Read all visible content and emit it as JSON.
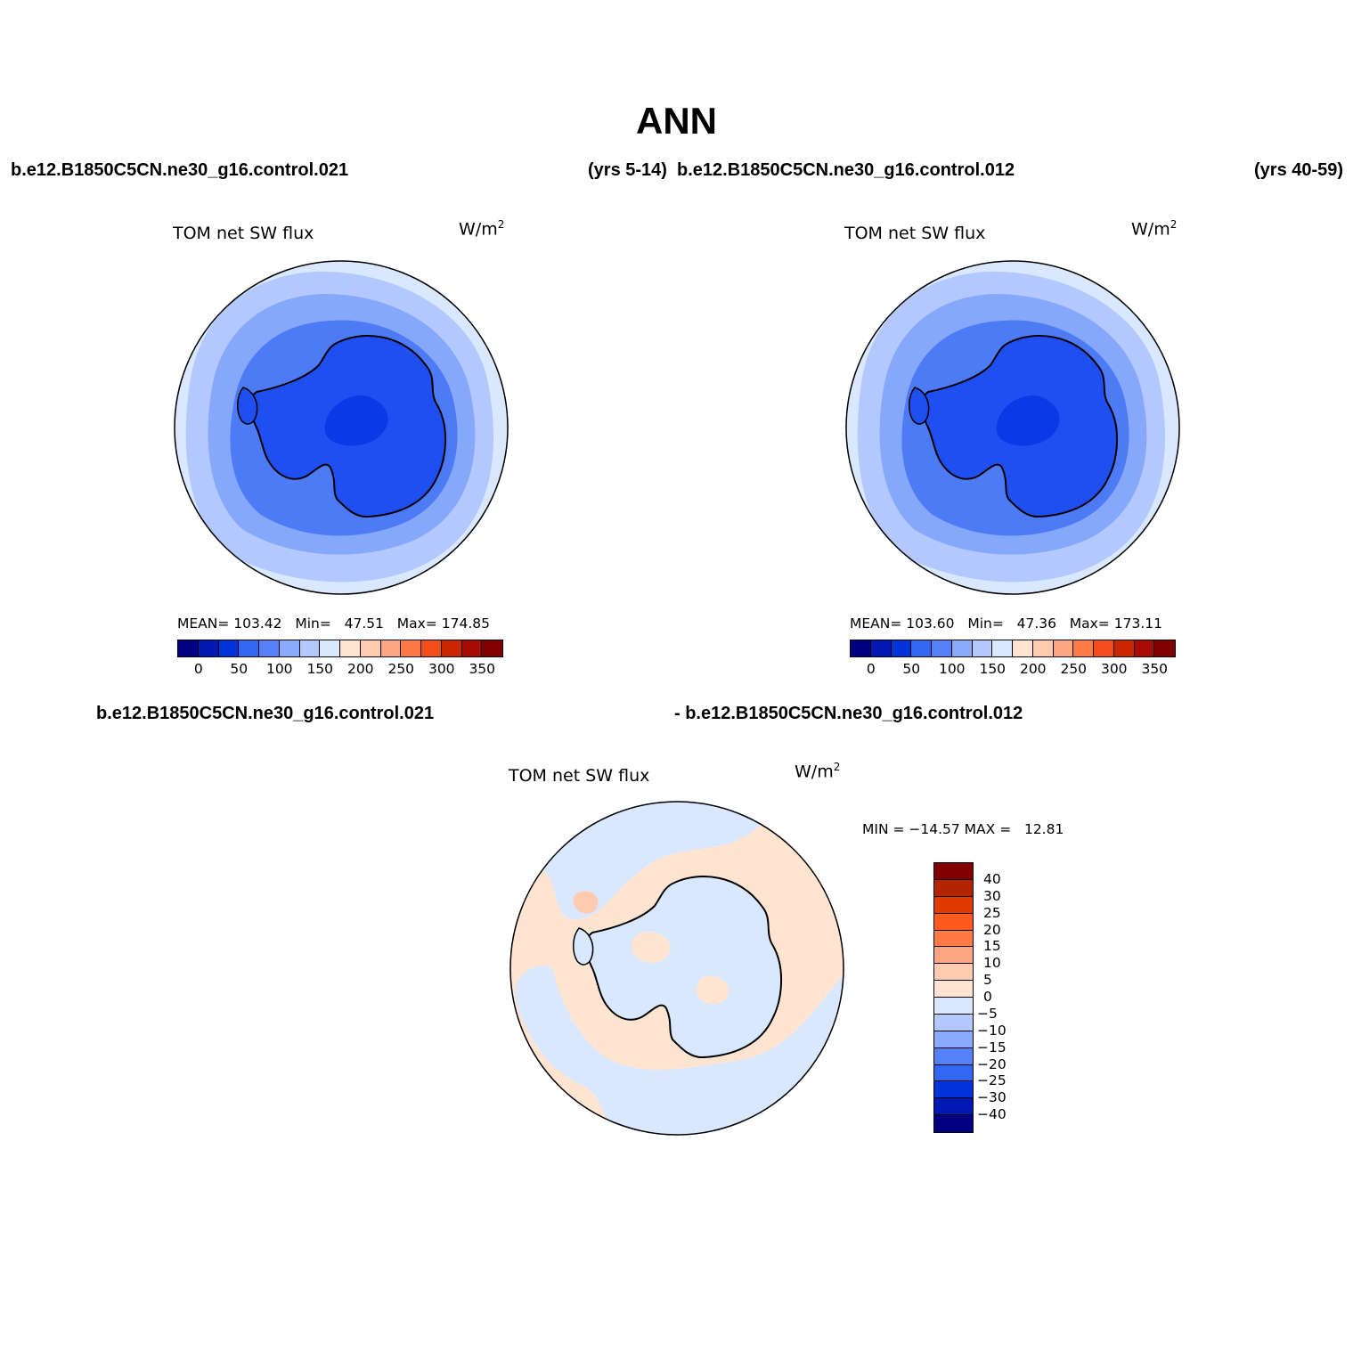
{
  "figure": {
    "title": "ANN",
    "top_left_case": "b.e12.B1850C5CN.ne30_g16.control.021",
    "top_left_years": "(yrs 5-14)",
    "top_right_case": "b.e12.B1850C5CN.ne30_g16.control.012",
    "top_right_years": "(yrs 40-59)",
    "diff_case_a": "b.e12.B1850C5CN.ne30_g16.control.021",
    "diff_case_b": "- b.e12.B1850C5CN.ne30_g16.control.012"
  },
  "panels": [
    {
      "variable": "TOM net SW flux",
      "units": "W/m",
      "units_power": "2",
      "stats": {
        "mean_label": "MEAN=",
        "mean": "103.42",
        "min_label": "Min=",
        "min": "47.51",
        "max_label": "Max=",
        "max": "174.85"
      },
      "colorbar": {
        "colors": [
          "#000080",
          "#0019b3",
          "#0033d9",
          "#3366f2",
          "#5580f7",
          "#8aaaff",
          "#b2c8ff",
          "#d9e8ff",
          "#ffe5d1",
          "#ffcbb0",
          "#ffa680",
          "#ff7a45",
          "#f24d1a",
          "#cc2600",
          "#a60d00",
          "#800000"
        ],
        "ticks": [
          "0",
          "50",
          "100",
          "150",
          "200",
          "250",
          "300",
          "350"
        ]
      }
    },
    {
      "variable": "TOM net SW flux",
      "units": "W/m",
      "units_power": "2",
      "stats": {
        "mean_label": "MEAN=",
        "mean": "103.60",
        "min_label": "Min=",
        "min": "47.36",
        "max_label": "Max=",
        "max": "173.11"
      },
      "colorbar": {
        "colors": [
          "#000080",
          "#0019b3",
          "#0033d9",
          "#3366f2",
          "#5580f7",
          "#8aaaff",
          "#b2c8ff",
          "#d9e8ff",
          "#ffe5d1",
          "#ffcbb0",
          "#ffa680",
          "#ff7a45",
          "#f24d1a",
          "#cc2600",
          "#a60d00",
          "#800000"
        ],
        "ticks": [
          "0",
          "50",
          "100",
          "150",
          "200",
          "250",
          "300",
          "350"
        ]
      }
    }
  ],
  "diff_panel": {
    "variable": "TOM net SW flux",
    "units": "W/m",
    "units_power": "2",
    "stats": "MIN = −14.57 MAX =   12.81",
    "colorbar": {
      "colors_top_to_bottom": [
        "#800000",
        "#b32400",
        "#e03a00",
        "#ff5a1f",
        "#ff7a45",
        "#ffa680",
        "#ffcbb0",
        "#ffe5d1",
        "#d9e8ff",
        "#b2c8ff",
        "#8aaaff",
        "#5580f7",
        "#3366f2",
        "#0033d9",
        "#0019b3",
        "#000080"
      ],
      "ticks": [
        "40",
        "30",
        "25",
        "20",
        "15",
        "10",
        "5",
        "0",
        "−5",
        "−10",
        "−15",
        "−20",
        "−25",
        "−30",
        "−40"
      ]
    }
  },
  "map_colors": {
    "ice_core": "#0a3ae6",
    "continent": "#1f4ff0",
    "ring1": "#4d7af5",
    "ring2": "#86a8fb",
    "ring3": "#b2c8ff",
    "ring4": "#d9e8ff",
    "diff_pos": "#ffe5d1",
    "diff_neg": "#d9e8ff",
    "diff_hot": "#ffcbb0"
  }
}
